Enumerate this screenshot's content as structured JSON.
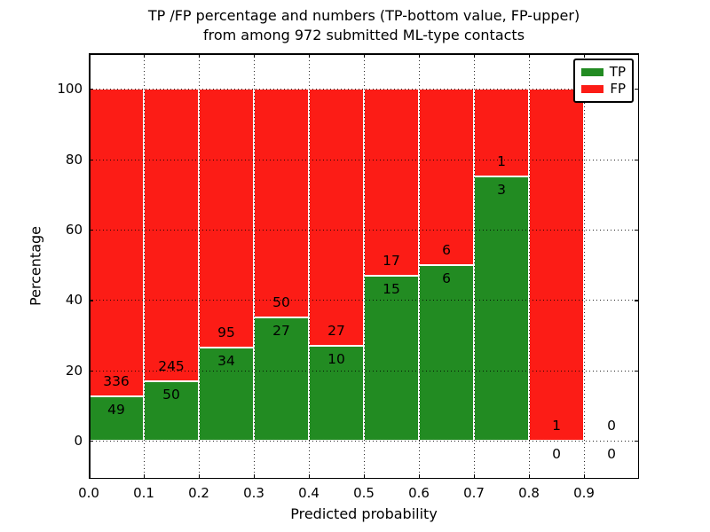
{
  "chart_data": {
    "type": "bar",
    "stacked": true,
    "title": "TP /FP percentage and numbers (TP-bottom value, FP-upper) from among 972 submitted ML-type contacts",
    "title_lines": [
      "TP /FP percentage and numbers (TP-bottom value, FP-upper)",
      "from among 972 submitted ML-type contacts"
    ],
    "xlabel": "Predicted probability",
    "ylabel": "Percentage",
    "bin_edges": [
      0.0,
      0.1,
      0.2,
      0.3,
      0.4,
      0.5,
      0.6,
      0.7,
      0.8,
      0.9,
      1.0
    ],
    "series": [
      {
        "name": "TP",
        "color": "#228b22",
        "counts": [
          49,
          50,
          34,
          27,
          10,
          15,
          6,
          3,
          0,
          0
        ],
        "percent": [
          12.73,
          16.95,
          26.36,
          35.06,
          27.03,
          46.88,
          50.0,
          75.0,
          0.0,
          0.0
        ]
      },
      {
        "name": "FP",
        "color": "#fc1c16",
        "counts": [
          336,
          245,
          95,
          50,
          27,
          17,
          6,
          1,
          1,
          0
        ],
        "percent": [
          87.27,
          83.05,
          73.64,
          64.94,
          72.97,
          53.12,
          50.0,
          25.0,
          100.0,
          0.0
        ]
      }
    ],
    "xticks": {
      "values": [
        0.0,
        0.1,
        0.2,
        0.3,
        0.4,
        0.5,
        0.6,
        0.7,
        0.8,
        0.9
      ],
      "labels": [
        "0.0",
        "0.1",
        "0.2",
        "0.3",
        "0.4",
        "0.5",
        "0.6",
        "0.7",
        "0.8",
        "0.9"
      ]
    },
    "yticks": {
      "values": [
        0,
        20,
        40,
        60,
        80,
        100
      ],
      "labels": [
        "0",
        "20",
        "40",
        "60",
        "80",
        "100"
      ]
    },
    "xlim": [
      0.0,
      1.0
    ],
    "ylim": [
      -10.8,
      110.1
    ],
    "grid": {
      "style": "dotted",
      "color": "#000000"
    },
    "bar_edge_color": "#ffffff",
    "legend": {
      "position": "upper right",
      "entries": [
        {
          "label": "TP",
          "color": "#228b22"
        },
        {
          "label": "FP",
          "color": "#fc1c16"
        }
      ]
    }
  }
}
